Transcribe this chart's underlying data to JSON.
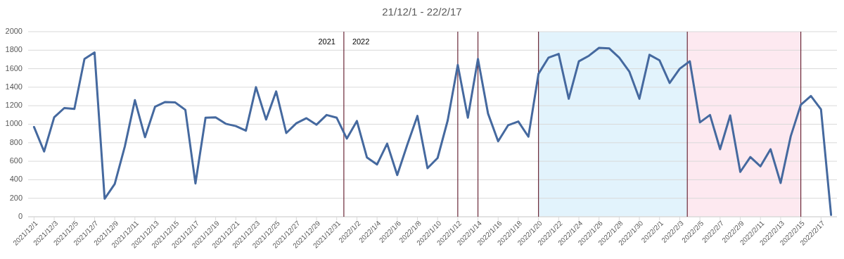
{
  "chart_data": {
    "type": "line",
    "title": "21/12/1 - 22/2/17",
    "x": [
      "2021-12-01",
      "2021-12-02",
      "2021-12-03",
      "2021-12-04",
      "2021-12-05",
      "2021-12-06",
      "2021-12-07",
      "2021-12-08",
      "2021-12-09",
      "2021-12-10",
      "2021-12-11",
      "2021-12-12",
      "2021-12-13",
      "2021-12-14",
      "2021-12-15",
      "2021-12-16",
      "2021-12-17",
      "2021-12-18",
      "2021-12-19",
      "2021-12-20",
      "2021-12-21",
      "2021-12-22",
      "2021-12-23",
      "2021-12-24",
      "2021-12-25",
      "2021-12-26",
      "2021-12-27",
      "2021-12-28",
      "2021-12-29",
      "2021-12-30",
      "2021-12-31",
      "2022-01-01",
      "2022-01-02",
      "2022-01-03",
      "2022-01-04",
      "2022-01-05",
      "2022-01-06",
      "2022-01-07",
      "2022-01-08",
      "2022-01-09",
      "2022-01-10",
      "2022-01-11",
      "2022-01-12",
      "2022-01-13",
      "2022-01-14",
      "2022-01-15",
      "2022-01-16",
      "2022-01-17",
      "2022-01-18",
      "2022-01-19",
      "2022-01-20",
      "2022-01-21",
      "2022-01-22",
      "2022-01-23",
      "2022-01-24",
      "2022-01-25",
      "2022-01-26",
      "2022-01-27",
      "2022-01-28",
      "2022-01-29",
      "2022-01-30",
      "2022-01-31",
      "2022-02-01",
      "2022-02-02",
      "2022-02-03",
      "2022-02-04",
      "2022-02-05",
      "2022-02-06",
      "2022-02-07",
      "2022-02-08",
      "2022-02-09",
      "2022-02-10",
      "2022-02-11",
      "2022-02-12",
      "2022-02-13",
      "2022-02-14",
      "2022-02-15",
      "2022-02-16",
      "2022-02-17",
      "2022-02-18"
    ],
    "series": [
      {
        "color": "#45699f",
        "values": [
          970,
          705,
          1075,
          1175,
          1165,
          1705,
          1775,
          195,
          355,
          760,
          1260,
          860,
          1190,
          1240,
          1235,
          1155,
          360,
          1070,
          1075,
          1005,
          980,
          930,
          1400,
          1050,
          1355,
          905,
          1010,
          1065,
          995,
          1100,
          1070,
          845,
          1035,
          640,
          565,
          790,
          450,
          780,
          1090,
          525,
          635,
          1040,
          1640,
          1070,
          1705,
          1115,
          815,
          990,
          1030,
          865,
          1545,
          1720,
          1760,
          1275,
          1680,
          1740,
          1825,
          1820,
          1720,
          1570,
          1275,
          1750,
          1690,
          1445,
          1600,
          1680,
          1020,
          1100,
          730,
          1095,
          485,
          645,
          545,
          730,
          365,
          870,
          1210,
          1305,
          1160,
          20
        ]
      }
    ],
    "xlim": [
      "2021-11-30T10:00",
      "2022-02-18T14:00"
    ],
    "xticks": [
      {
        "value": "2021-12-01",
        "label": "2021/12/1"
      },
      {
        "value": "2021-12-03",
        "label": "2021/12/3"
      },
      {
        "value": "2021-12-05",
        "label": "2021/12/5"
      },
      {
        "value": "2021-12-07",
        "label": "2021/12/7"
      },
      {
        "value": "2021-12-09",
        "label": "2021/12/9"
      },
      {
        "value": "2021-12-11",
        "label": "2021/12/11"
      },
      {
        "value": "2021-12-13",
        "label": "2021/12/13"
      },
      {
        "value": "2021-12-15",
        "label": "2021/12/15"
      },
      {
        "value": "2021-12-17",
        "label": "2021/12/17"
      },
      {
        "value": "2021-12-19",
        "label": "2021/12/19"
      },
      {
        "value": "2021-12-21",
        "label": "2021/12/21"
      },
      {
        "value": "2021-12-23",
        "label": "2021/12/23"
      },
      {
        "value": "2021-12-25",
        "label": "2021/12/25"
      },
      {
        "value": "2021-12-27",
        "label": "2021/12/27"
      },
      {
        "value": "2021-12-29",
        "label": "2021/12/29"
      },
      {
        "value": "2021-12-31",
        "label": "2021/12/31"
      },
      {
        "value": "2022-01-02",
        "label": "2022/1/2"
      },
      {
        "value": "2022-01-04",
        "label": "2022/1/4"
      },
      {
        "value": "2022-01-06",
        "label": "2022/1/6"
      },
      {
        "value": "2022-01-08",
        "label": "2022/1/8"
      },
      {
        "value": "2022-01-10",
        "label": "2022/1/10"
      },
      {
        "value": "2022-01-12",
        "label": "2022/1/12"
      },
      {
        "value": "2022-01-14",
        "label": "2022/1/14"
      },
      {
        "value": "2022-01-16",
        "label": "2022/1/16"
      },
      {
        "value": "2022-01-18",
        "label": "2022/1/18"
      },
      {
        "value": "2022-01-20",
        "label": "2022/1/20"
      },
      {
        "value": "2022-01-22",
        "label": "2022/1/22"
      },
      {
        "value": "2022-01-24",
        "label": "2022/1/24"
      },
      {
        "value": "2022-01-26",
        "label": "2022/1/26"
      },
      {
        "value": "2022-01-28",
        "label": "2022/1/28"
      },
      {
        "value": "2022-01-30",
        "label": "2022/1/30"
      },
      {
        "value": "2022-02-01",
        "label": "2022/2/1"
      },
      {
        "value": "2022-02-03",
        "label": "2022/2/3"
      },
      {
        "value": "2022-02-05",
        "label": "2022/2/5"
      },
      {
        "value": "2022-02-07",
        "label": "2022/2/7"
      },
      {
        "value": "2022-02-09",
        "label": "2022/2/9"
      },
      {
        "value": "2022-02-11",
        "label": "2022/2/11"
      },
      {
        "value": "2022-02-13",
        "label": "2022/2/13"
      },
      {
        "value": "2022-02-15",
        "label": "2022/2/15"
      },
      {
        "value": "2022-02-17",
        "label": "2022/2/17"
      }
    ],
    "ylim": [
      0,
      2000
    ],
    "yticks": [
      0,
      200,
      400,
      600,
      800,
      1000,
      1200,
      1400,
      1600,
      1800,
      2000
    ],
    "grid": "y",
    "bands": [
      {
        "axis": "x",
        "from": "2022-01-20",
        "to": "2022-02-03T18:00",
        "color": "#e2f3fc"
      },
      {
        "axis": "x",
        "from": "2022-02-03T18:00",
        "to": "2022-02-15",
        "color": "#fde9f0"
      }
    ],
    "ref_lines": [
      {
        "axis": "x",
        "value": "2021-12-31T17:00",
        "label": "2022",
        "color": "#6b2838"
      },
      {
        "axis": "x",
        "value": "2022-01-12",
        "color": "#6b2838"
      },
      {
        "axis": "x",
        "value": "2022-01-14",
        "color": "#6b2838"
      },
      {
        "axis": "x",
        "value": "2022-01-20",
        "color": "#6b2838"
      },
      {
        "axis": "x",
        "value": "2022-02-03T18:00",
        "color": "#6b2838"
      },
      {
        "axis": "x",
        "value": "2022-02-15",
        "color": "#6b2838"
      }
    ],
    "annotations": [
      "2021"
    ]
  }
}
